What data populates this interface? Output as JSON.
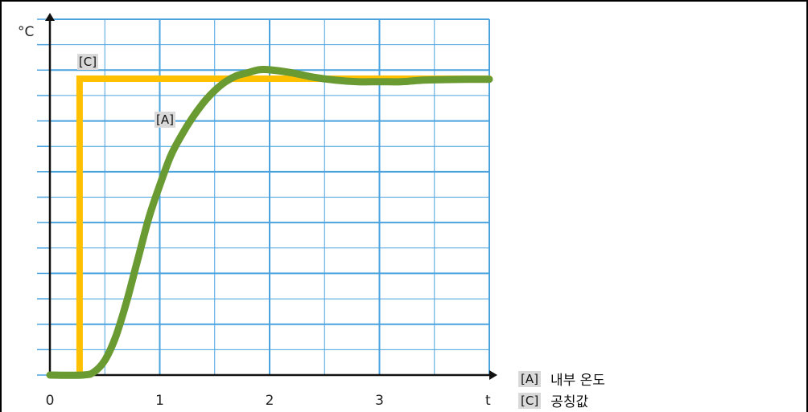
{
  "chart_data": {
    "type": "line",
    "xlabel": "t",
    "ylabel": "°C",
    "x_ticks": [
      "0",
      "1",
      "2",
      "3"
    ],
    "xlim": [
      0,
      4
    ],
    "grid": true,
    "series": [
      {
        "name": "[A]",
        "color": "#6a9a32",
        "x": [
          0,
          0.3,
          0.4,
          0.5,
          0.6,
          0.7,
          0.8,
          0.9,
          1.0,
          1.1,
          1.2,
          1.3,
          1.4,
          1.5,
          1.6,
          1.7,
          1.8,
          1.9,
          2.0,
          2.2,
          2.4,
          2.6,
          2.8,
          3.0,
          3.2,
          3.4,
          3.6,
          3.8,
          4.0
        ],
        "y": [
          0,
          0,
          0.01,
          0.05,
          0.13,
          0.25,
          0.39,
          0.53,
          0.64,
          0.74,
          0.81,
          0.87,
          0.92,
          0.96,
          0.99,
          1.01,
          1.02,
          1.03,
          1.03,
          1.02,
          1.005,
          0.995,
          0.99,
          0.99,
          0.99,
          0.995,
          0.997,
          0.998,
          0.998
        ]
      },
      {
        "name": "[C]",
        "color": "#ffc000",
        "x": [
          0,
          0.27,
          0.27,
          4.0
        ],
        "y": [
          0,
          0,
          1.0,
          1.0
        ]
      }
    ]
  },
  "legend": [
    {
      "key": "[A]",
      "label": "내부 온도"
    },
    {
      "key": "[C]",
      "label": "공칭값"
    }
  ]
}
